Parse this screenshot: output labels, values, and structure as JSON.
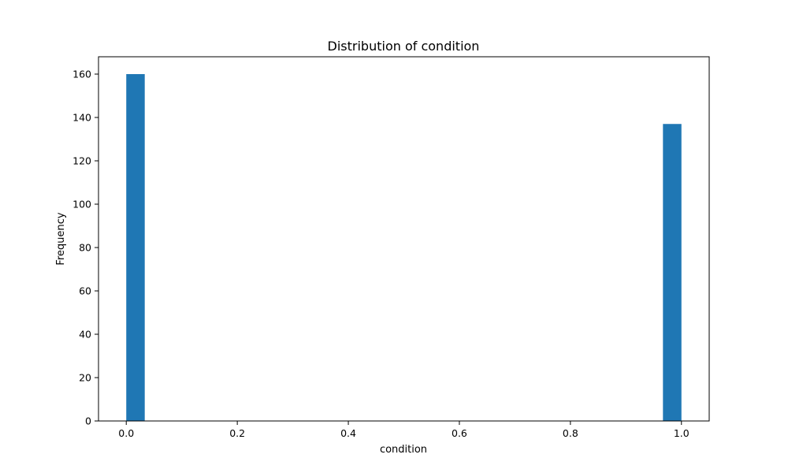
{
  "chart_data": {
    "type": "bar",
    "title": "Distribution of condition",
    "xlabel": "condition",
    "ylabel": "Frequency",
    "bin_count": 30,
    "bins": [
      {
        "x0": 0.0,
        "x1": 0.0333,
        "value": 160
      },
      {
        "x0": 0.9667,
        "x1": 1.0,
        "value": 137
      }
    ],
    "xlim": [
      -0.05,
      1.05
    ],
    "ylim": [
      0,
      168
    ],
    "xticks": [
      0.0,
      0.2,
      0.4,
      0.6,
      0.8,
      1.0
    ],
    "xtick_labels": [
      "0.0",
      "0.2",
      "0.4",
      "0.6",
      "0.8",
      "1.0"
    ],
    "yticks": [
      0,
      20,
      40,
      60,
      80,
      100,
      120,
      140,
      160
    ],
    "ytick_labels": [
      "0",
      "20",
      "40",
      "60",
      "80",
      "100",
      "120",
      "140",
      "160"
    ],
    "grid": false,
    "legend": "none",
    "bar_color": "#1f77b4"
  }
}
